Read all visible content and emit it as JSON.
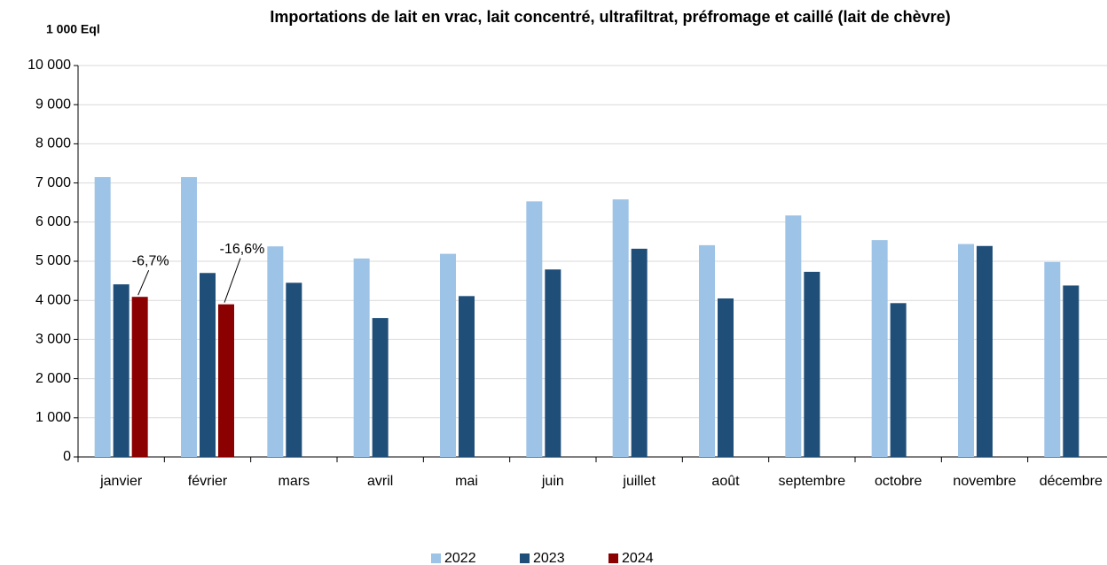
{
  "chart_data": {
    "type": "bar",
    "title": "Importations de lait en vrac, lait concentré, ultrafiltrat, préfromage et caillé (lait de chèvre)",
    "y_axis_label": "1 000 Eql",
    "categories": [
      "janvier",
      "février",
      "mars",
      "avril",
      "mai",
      "juin",
      "juillet",
      "août",
      "septembre",
      "octobre",
      "novembre",
      "décembre"
    ],
    "series": [
      {
        "name": "2022",
        "color": "#9dc3e6",
        "values": [
          7150,
          7150,
          5380,
          5070,
          5190,
          6530,
          6580,
          5410,
          6170,
          5540,
          5440,
          4980
        ]
      },
      {
        "name": "2023",
        "color": "#1f4e79",
        "values": [
          4410,
          4700,
          4450,
          3550,
          4110,
          4790,
          5320,
          4050,
          4730,
          3930,
          5390,
          4380
        ]
      },
      {
        "name": "2024",
        "color": "#8b0000",
        "values": [
          4090,
          3900,
          null,
          null,
          null,
          null,
          null,
          null,
          null,
          null,
          null,
          null
        ]
      }
    ],
    "annotations": [
      "-6,7%",
      "-16,6%"
    ],
    "ylim": [
      0,
      10000
    ],
    "yticks": [
      0,
      {
        "value": 1000,
        "label": "1 000"
      },
      {
        "value": 2000,
        "label": "2 000"
      },
      {
        "value": 3000,
        "label": "3 000"
      },
      {
        "value": 4000,
        "label": "4 000"
      },
      {
        "value": 5000,
        "label": "5 000"
      },
      {
        "value": 6000,
        "label": "6 000"
      },
      {
        "value": 7000,
        "label": "7 000"
      },
      {
        "value": 8000,
        "label": "8 000"
      },
      {
        "value": 9000,
        "label": "9 000"
      },
      {
        "value": 10000,
        "label": "10 000"
      }
    ],
    "grid": true,
    "legend": "bottom"
  }
}
